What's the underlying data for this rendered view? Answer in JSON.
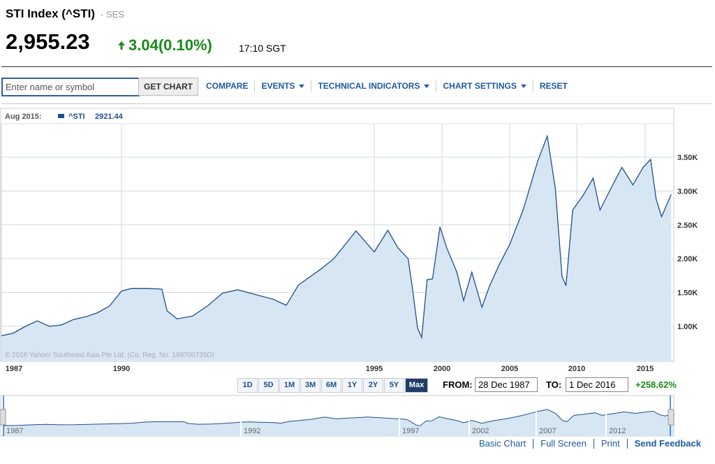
{
  "header": {
    "title": "STI Index (^STI)",
    "exchange": "- SES",
    "price": "2,955.23",
    "change": "3.04",
    "change_percent": "(0.10%)",
    "time": "17:10 SGT"
  },
  "toolbar": {
    "search_placeholder": "Enter name or symbol",
    "button": "GET CHART",
    "menu": [
      {
        "label": "COMPARE",
        "dropdown": false
      },
      {
        "label": "EVENTS",
        "dropdown": true
      },
      {
        "label": "TECHNICAL INDICATORS",
        "dropdown": true
      },
      {
        "label": "CHART SETTINGS",
        "dropdown": true
      },
      {
        "label": "RESET",
        "dropdown": false
      }
    ]
  },
  "chart_data": {
    "type": "area",
    "hover": {
      "date": "Aug 2015:",
      "value": 2921.44
    },
    "annotations": [
      "© 2016 Yahoo! Southeast Asia Pte Ltd. (Co. Reg. No. 199700735D)"
    ],
    "x": [
      1987.0,
      1987.3,
      1987.6,
      1987.9,
      1988.2,
      1988.5,
      1988.8,
      1989.1,
      1989.4,
      1989.7,
      1990.0,
      1990.2,
      1990.5,
      1990.8,
      1990.9,
      1991.1,
      1991.4,
      1991.7,
      1992.0,
      1992.3,
      1992.6,
      1993.0,
      1993.26,
      1993.5,
      1993.95,
      1994.2,
      1994.64,
      1995.0,
      1996.0,
      1996.75,
      1997.5,
      1997.8,
      1998.2,
      1998.5,
      1998.9,
      1999.3,
      1999.85,
      2000.35,
      2001.1,
      2001.6,
      2002.2,
      2002.95,
      2003.5,
      2004.2,
      2005.0,
      2006.0,
      2007.1,
      2007.8,
      2008.4,
      2008.9,
      2009.2,
      2009.7,
      2010.45,
      2011.2,
      2011.7,
      2012.5,
      2013.3,
      2014.1,
      2014.85,
      2015.4,
      2015.8,
      2016.2,
      2016.9
    ],
    "series": [
      {
        "name": "^STI",
        "color": "#1f4e8c",
        "fill": "#d7e6f3",
        "values": [
          860,
          900,
          1000,
          1080,
          1000,
          1020,
          1100,
          1140,
          1200,
          1300,
          1520,
          1560,
          1560,
          1550,
          1230,
          1110,
          1150,
          1300,
          1490,
          1540,
          1480,
          1400,
          1310,
          1610,
          1850,
          2000,
          2410,
          2100,
          2420,
          2160,
          2000,
          1590,
          970,
          835,
          1690,
          1700,
          2470,
          2160,
          1800,
          1380,
          1800,
          1280,
          1590,
          1900,
          2210,
          2720,
          3450,
          3810,
          3040,
          1740,
          1600,
          2720,
          2930,
          3190,
          2720,
          3040,
          3350,
          3090,
          3350,
          3470,
          2880,
          2620,
          2950
        ]
      }
    ],
    "xlim": [
      1987,
      2016.9
    ],
    "xticks": [
      1987,
      1990,
      1995,
      2000,
      2005,
      2010,
      2015
    ],
    "ylim": [
      483,
      3985
    ],
    "yticks": [
      {
        "value": 1000,
        "label": "1.00K"
      },
      {
        "value": 1500,
        "label": "1.50K"
      },
      {
        "value": 2000,
        "label": "2.00K"
      },
      {
        "value": 2500,
        "label": "2.50K"
      },
      {
        "value": 3000,
        "label": "3.00K"
      },
      {
        "value": 3500,
        "label": "3.50K"
      }
    ],
    "grid": true
  },
  "range": {
    "buttons": [
      "1D",
      "5D",
      "1M",
      "3M",
      "6M",
      "1Y",
      "2Y",
      "5Y",
      "Max"
    ],
    "selected": "Max",
    "from_label": "FROM:",
    "from": "28 Dec 1987",
    "to_label": "TO:",
    "to": "1 Dec 2016",
    "change": "+258.62%"
  },
  "navigator": {
    "ticks": [
      1987,
      1992,
      1997,
      2002,
      2007,
      2012
    ]
  },
  "footer": {
    "links": [
      "Basic Chart",
      "Full Screen",
      "Print",
      "Send Feedback"
    ]
  }
}
